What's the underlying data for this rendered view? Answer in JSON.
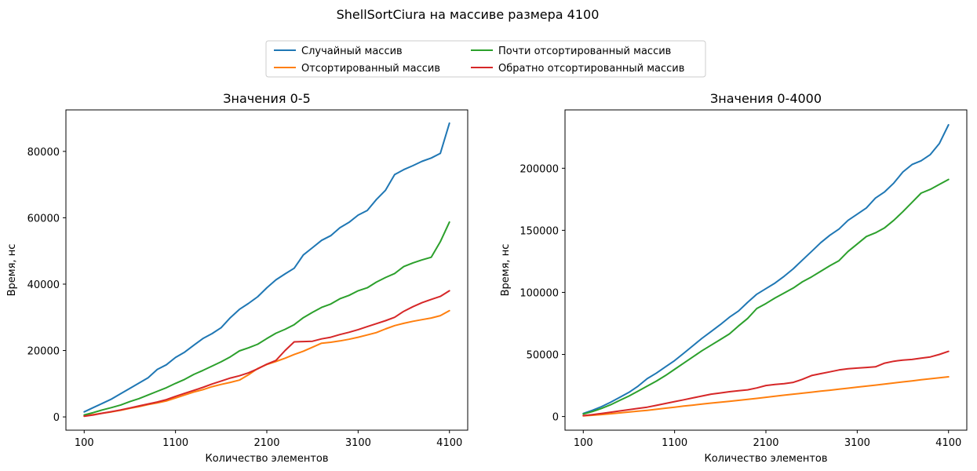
{
  "figure": {
    "suptitle": "ShellSortCiura на массиве размера 4100",
    "legend_placement": "top-center",
    "colors": {
      "series_0": "#1f77b4",
      "series_1": "#ff7f0e",
      "series_2": "#2ca02c",
      "series_3": "#d62728"
    }
  },
  "chart_data": [
    {
      "type": "line",
      "title": "Значения 0-5",
      "xlabel": "Количество элементов",
      "ylabel": "Время, нс",
      "xlim": [
        -100,
        4300
      ],
      "ylim": [
        -4000,
        92500
      ],
      "xticks": [
        100,
        1100,
        2100,
        3100,
        4100
      ],
      "yticks": [
        0,
        20000,
        40000,
        60000,
        80000
      ],
      "grid": false,
      "x": [
        100,
        200,
        300,
        400,
        500,
        600,
        700,
        800,
        900,
        1000,
        1100,
        1200,
        1300,
        1400,
        1500,
        1600,
        1700,
        1800,
        1900,
        2000,
        2100,
        2200,
        2300,
        2400,
        2500,
        2600,
        2700,
        2800,
        2900,
        3000,
        3100,
        3200,
        3300,
        3400,
        3500,
        3600,
        3700,
        3800,
        3900,
        4000,
        4100
      ],
      "series": [
        {
          "name": "Случайный массив",
          "values": [
            1500,
            2800,
            4100,
            5400,
            7000,
            8600,
            10200,
            11800,
            14300,
            15700,
            17900,
            19500,
            21600,
            23600,
            25100,
            26900,
            29900,
            32400,
            34200,
            36200,
            38900,
            41300,
            43100,
            44800,
            48800,
            51000,
            53200,
            54600,
            57000,
            58600,
            60800,
            62200,
            65500,
            68300,
            73000,
            74500,
            75700,
            77000,
            78000,
            79400,
            88500
          ]
        },
        {
          "name": "Отсортированный массив",
          "values": [
            300,
            700,
            1100,
            1500,
            2000,
            2600,
            3100,
            3700,
            4200,
            4800,
            5700,
            6600,
            7500,
            8200,
            9100,
            9800,
            10400,
            11100,
            12700,
            14600,
            15800,
            16700,
            17700,
            18800,
            19800,
            21000,
            22200,
            22500,
            22900,
            23400,
            24000,
            24700,
            25400,
            26500,
            27500,
            28200,
            28800,
            29300,
            29800,
            30500,
            32000
          ]
        },
        {
          "name": "Почти отсортированный массив",
          "values": [
            600,
            1300,
            2100,
            2800,
            3600,
            4600,
            5500,
            6600,
            7700,
            8800,
            10100,
            11300,
            12800,
            14000,
            15300,
            16600,
            18100,
            19900,
            20800,
            21900,
            23600,
            25200,
            26400,
            27800,
            29900,
            31500,
            33000,
            34000,
            35600,
            36600,
            38000,
            38900,
            40600,
            42000,
            43200,
            45300,
            46400,
            47300,
            48100,
            52800,
            58700
          ]
        },
        {
          "name": "Обратно отсортированный массив",
          "values": [
            200,
            600,
            1100,
            1600,
            2100,
            2700,
            3300,
            3900,
            4500,
            5200,
            6200,
            7100,
            8000,
            8900,
            9900,
            10800,
            11700,
            12400,
            13300,
            14500,
            15900,
            17000,
            20000,
            22600,
            22700,
            22800,
            23500,
            24000,
            24800,
            25500,
            26300,
            27200,
            28100,
            29000,
            30000,
            31800,
            33200,
            34400,
            35400,
            36300,
            38000
          ]
        }
      ]
    },
    {
      "type": "line",
      "title": "Значения 0-4000",
      "xlabel": "Количество элементов",
      "ylabel": "Время, нс",
      "xlim": [
        -100,
        4300
      ],
      "ylim": [
        -11000,
        247000
      ],
      "xticks": [
        100,
        1100,
        2100,
        3100,
        4100
      ],
      "yticks": [
        0,
        50000,
        100000,
        150000,
        200000
      ],
      "grid": false,
      "x": [
        100,
        200,
        300,
        400,
        500,
        600,
        700,
        800,
        900,
        1000,
        1100,
        1200,
        1300,
        1400,
        1500,
        1600,
        1700,
        1800,
        1900,
        2000,
        2100,
        2200,
        2300,
        2400,
        2500,
        2600,
        2700,
        2800,
        2900,
        3000,
        3100,
        3200,
        3300,
        3400,
        3500,
        3600,
        3700,
        3800,
        3900,
        4000,
        4100
      ],
      "series": [
        {
          "name": "Случайный массив",
          "values": [
            2500,
            5000,
            8000,
            11500,
            15500,
            19500,
            24500,
            30500,
            35000,
            40000,
            45000,
            51000,
            57000,
            63000,
            68500,
            74000,
            80000,
            85000,
            92000,
            98500,
            103000,
            107500,
            113000,
            119000,
            126000,
            133000,
            140000,
            146000,
            151000,
            158000,
            163000,
            168000,
            176000,
            181000,
            188000,
            197000,
            203000,
            206000,
            211000,
            220000,
            235000
          ]
        },
        {
          "name": "Отсортированный массив",
          "values": [
            500,
            1000,
            1600,
            2200,
            2900,
            3600,
            4300,
            5000,
            5800,
            6700,
            7500,
            8400,
            9200,
            10000,
            10800,
            11500,
            12300,
            13000,
            13800,
            14600,
            15500,
            16300,
            17200,
            18000,
            18800,
            19600,
            20400,
            21200,
            22000,
            22800,
            23700,
            24500,
            25300,
            26200,
            27000,
            27900,
            28700,
            29600,
            30400,
            31200,
            32000
          ]
        },
        {
          "name": "Почти отсортированный массив",
          "values": [
            2000,
            4000,
            6500,
            9500,
            13000,
            16500,
            20500,
            24500,
            28500,
            33000,
            38000,
            43000,
            48000,
            53000,
            57500,
            62000,
            66500,
            73000,
            79000,
            87000,
            91000,
            95500,
            99500,
            103500,
            108500,
            112500,
            117000,
            121500,
            125500,
            133000,
            139000,
            145000,
            148000,
            152000,
            158000,
            165000,
            172500,
            180000,
            183000,
            187000,
            191000
          ]
        },
        {
          "name": "Обратно отсортированный массив",
          "values": [
            700,
            1500,
            2500,
            3500,
            4500,
            5500,
            6500,
            7500,
            9000,
            10500,
            12000,
            13500,
            15000,
            16500,
            18000,
            19000,
            20000,
            20800,
            21500,
            23000,
            25000,
            25800,
            26500,
            27500,
            30000,
            33000,
            34500,
            36000,
            37500,
            38500,
            39000,
            39500,
            40000,
            43000,
            44500,
            45500,
            46000,
            47000,
            48000,
            50000,
            52500
          ]
        }
      ]
    }
  ]
}
